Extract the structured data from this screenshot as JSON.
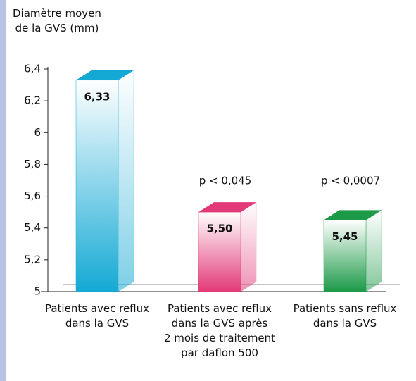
{
  "chart_data": {
    "type": "bar3d",
    "y_label": "Diamètre moyen\nde la GVS (mm)",
    "categories": [
      "Patients avec reflux\ndans la GVS",
      "Patients avec reflux\ndans la GVS après\n2 mois de traitement\npar daflon 500",
      "Patients sans reflux\ndans la GVS"
    ],
    "values": [
      6.33,
      5.5,
      5.45
    ],
    "value_labels": [
      "6,33",
      "5,50",
      "5,45"
    ],
    "annotations": [
      null,
      "p < 0,045",
      "p < 0,0007"
    ],
    "colors": [
      "#14a9d4",
      "#e23a78",
      "#1c9a48"
    ],
    "ylim": [
      5,
      6.4
    ],
    "yticks": [
      5,
      {
        "value": 5.2,
        "label": "5,2"
      },
      {
        "value": 5.4,
        "label": "5,4"
      },
      {
        "value": 5.6,
        "label": "5,6"
      },
      {
        "value": 5.8,
        "label": "5,8"
      },
      6,
      {
        "value": 6.2,
        "label": "6,2"
      },
      {
        "value": 6.4,
        "label": "6,4"
      }
    ]
  }
}
